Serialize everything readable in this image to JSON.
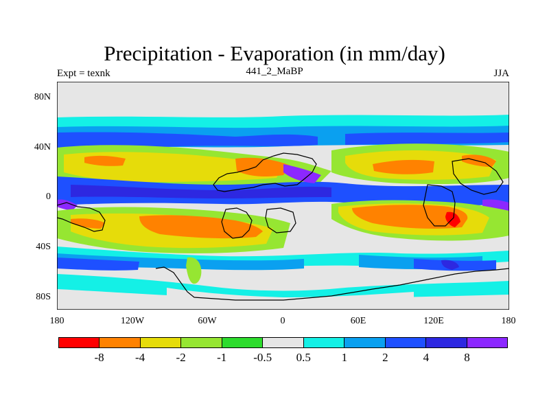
{
  "title": "Precipitation - Evaporation (in mm/day)",
  "subtitle_left": "Expt = texnk",
  "subtitle_center": "441_2_MaBP",
  "subtitle_right": "JJA",
  "yticks": [
    "80N",
    "40N",
    "0",
    "40S",
    "80S"
  ],
  "xticks": [
    "180",
    "120W",
    "60W",
    "0",
    "60E",
    "120E",
    "180"
  ],
  "colorbar": {
    "colors": [
      "#ff0000",
      "#ff8200",
      "#e6dc0a",
      "#96e632",
      "#2ddc2d",
      "#e6e6e6",
      "#14f0e6",
      "#0aa0f0",
      "#1e50ff",
      "#2d28e1",
      "#8c28ff"
    ],
    "labels": [
      "-8",
      "-4",
      "-2",
      "-1",
      "-0.5",
      "0.5",
      "1",
      "2",
      "4",
      "8"
    ]
  }
}
